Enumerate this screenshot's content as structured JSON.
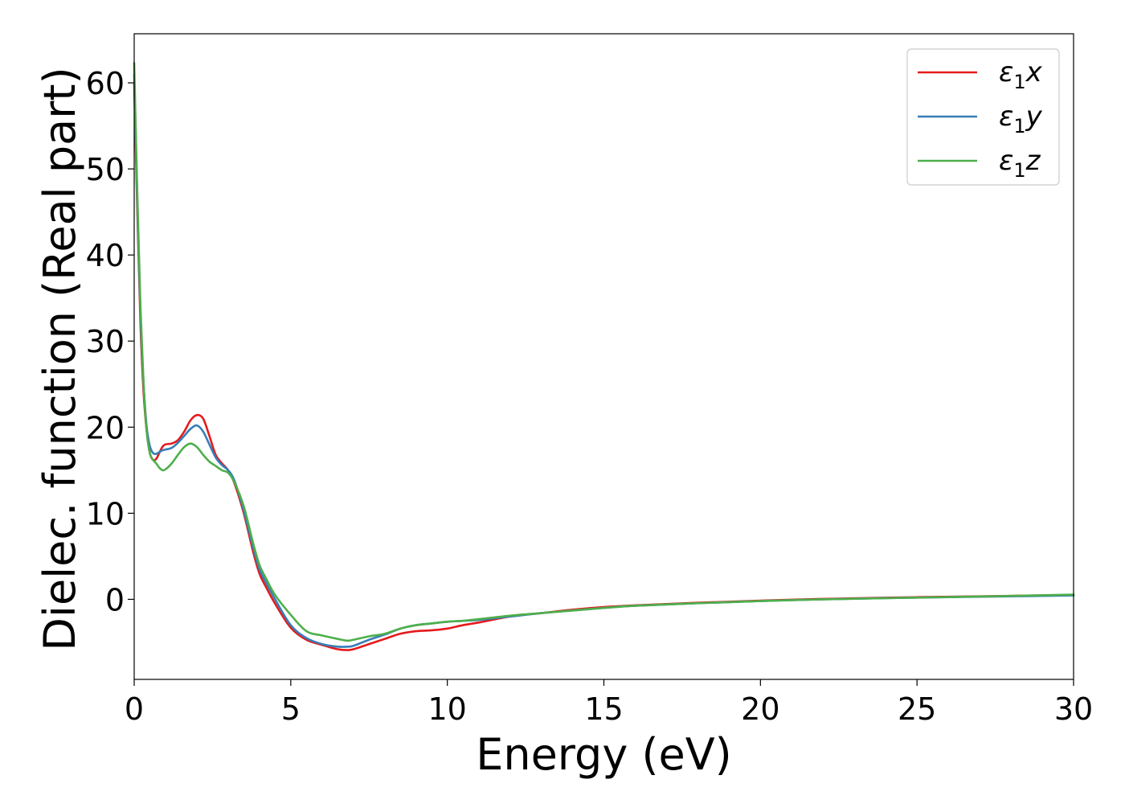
{
  "chart_data": {
    "type": "line",
    "title": "",
    "xlabel": "Energy (eV)",
    "ylabel": "Dielec. function (Real part)",
    "xlim": [
      0,
      30
    ],
    "ylim": [
      -9.3,
      65.7
    ],
    "xticks": [
      0,
      5,
      10,
      15,
      20,
      25,
      30
    ],
    "yticks": [
      0,
      10,
      20,
      30,
      40,
      50,
      60
    ],
    "grid": false,
    "legend_position": "top-right",
    "series": [
      {
        "name": "ε₁x",
        "legend_base": "ε",
        "legend_sub": "1",
        "legend_suffix": "x",
        "color": "#e41a1c",
        "x": [
          0,
          0.1,
          0.2,
          0.3,
          0.4,
          0.5,
          0.6,
          0.7,
          0.8,
          0.9,
          1.0,
          1.2,
          1.4,
          1.6,
          1.8,
          2.0,
          2.2,
          2.4,
          2.6,
          2.8,
          3.0,
          3.2,
          3.5,
          3.8,
          4.0,
          4.2,
          4.5,
          5.0,
          5.5,
          6.0,
          6.5,
          6.8,
          7.0,
          7.5,
          8.0,
          8.5,
          9.0,
          9.5,
          10.0,
          10.5,
          11.0,
          12.0,
          13.0,
          14.0,
          15.0,
          16.0,
          18.0,
          20.0,
          22.0,
          25.0,
          28.0,
          30.0
        ],
        "y": [
          60.0,
          45.0,
          32.0,
          24.0,
          19.5,
          17.0,
          16.2,
          16.3,
          17.0,
          17.7,
          18.0,
          18.1,
          18.5,
          19.5,
          20.8,
          21.4,
          21.0,
          19.0,
          16.8,
          15.8,
          15.0,
          13.5,
          10.0,
          5.5,
          3.0,
          1.5,
          -0.5,
          -3.3,
          -4.7,
          -5.3,
          -5.8,
          -5.9,
          -5.8,
          -5.2,
          -4.6,
          -4.0,
          -3.7,
          -3.6,
          -3.4,
          -3.0,
          -2.7,
          -2.0,
          -1.6,
          -1.2,
          -0.9,
          -0.7,
          -0.4,
          -0.15,
          0.05,
          0.25,
          0.4,
          0.5
        ]
      },
      {
        "name": "ε₁y",
        "legend_base": "ε",
        "legend_sub": "1",
        "legend_suffix": "y",
        "color": "#377eb8",
        "x": [
          0,
          0.1,
          0.2,
          0.3,
          0.4,
          0.5,
          0.6,
          0.7,
          0.8,
          0.9,
          1.0,
          1.2,
          1.4,
          1.6,
          1.8,
          2.0,
          2.2,
          2.4,
          2.6,
          2.8,
          3.0,
          3.2,
          3.5,
          3.8,
          4.0,
          4.2,
          4.5,
          5.0,
          5.5,
          6.0,
          6.5,
          6.8,
          7.0,
          7.5,
          8.0,
          8.5,
          9.0,
          9.5,
          10.0,
          10.5,
          11.0,
          12.0,
          13.0,
          14.0,
          15.0,
          16.0,
          18.0,
          20.0,
          22.0,
          25.0,
          28.0,
          30.0
        ],
        "y": [
          61.0,
          46.0,
          33.0,
          25.0,
          20.0,
          17.8,
          17.0,
          16.9,
          17.1,
          17.3,
          17.4,
          17.6,
          18.2,
          19.0,
          19.8,
          20.2,
          19.5,
          18.0,
          16.5,
          15.6,
          15.0,
          13.8,
          10.3,
          6.0,
          3.5,
          2.0,
          0.0,
          -3.0,
          -4.5,
          -5.2,
          -5.5,
          -5.5,
          -5.4,
          -4.7,
          -4.1,
          -3.4,
          -3.0,
          -2.8,
          -2.6,
          -2.5,
          -2.4,
          -2.0,
          -1.6,
          -1.3,
          -1.0,
          -0.75,
          -0.45,
          -0.2,
          0.0,
          0.2,
          0.35,
          0.45
        ]
      },
      {
        "name": "ε₁z",
        "legend_base": "ε",
        "legend_sub": "1",
        "legend_suffix": "z",
        "color": "#4daf4a",
        "x": [
          0,
          0.1,
          0.2,
          0.3,
          0.4,
          0.5,
          0.6,
          0.7,
          0.8,
          0.9,
          1.0,
          1.2,
          1.4,
          1.6,
          1.8,
          2.0,
          2.2,
          2.4,
          2.6,
          2.8,
          3.0,
          3.2,
          3.5,
          3.8,
          4.0,
          4.2,
          4.5,
          5.0,
          5.5,
          6.0,
          6.5,
          6.8,
          7.0,
          7.5,
          8.0,
          8.5,
          9.0,
          9.5,
          10.0,
          10.5,
          11.0,
          12.0,
          13.0,
          14.0,
          15.0,
          16.0,
          18.0,
          20.0,
          22.0,
          25.0,
          28.0,
          30.0
        ],
        "y": [
          62.3,
          47.0,
          34.0,
          25.0,
          19.5,
          17.0,
          16.2,
          15.8,
          15.3,
          15.0,
          15.1,
          15.8,
          16.8,
          17.7,
          18.1,
          17.7,
          16.8,
          16.0,
          15.5,
          15.0,
          14.7,
          13.6,
          10.8,
          6.5,
          4.0,
          2.5,
          0.5,
          -1.8,
          -3.7,
          -4.2,
          -4.6,
          -4.8,
          -4.7,
          -4.3,
          -4.0,
          -3.4,
          -3.0,
          -2.8,
          -2.6,
          -2.5,
          -2.3,
          -1.9,
          -1.6,
          -1.3,
          -1.0,
          -0.75,
          -0.45,
          -0.2,
          0.0,
          0.2,
          0.4,
          0.55
        ]
      }
    ]
  }
}
